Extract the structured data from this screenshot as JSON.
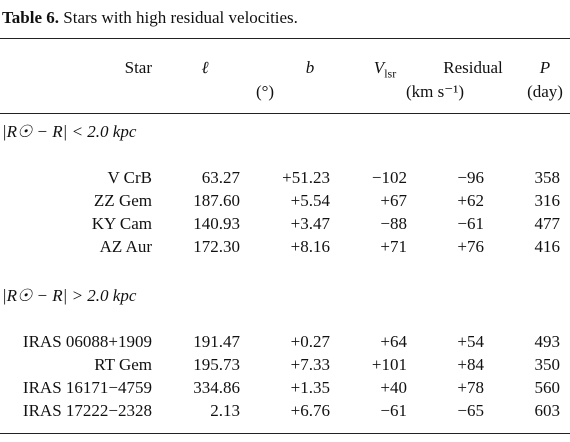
{
  "caption": {
    "label": "Table 6.",
    "text": "Stars with high residual velocities."
  },
  "table": {
    "header": [
      {
        "text": "Star"
      },
      {
        "text": "ℓ"
      },
      {
        "text": "b"
      },
      {
        "text": "V",
        "sub": "lsr"
      },
      {
        "text": "Residual"
      },
      {
        "text": "P"
      }
    ],
    "units": [
      "(°)",
      "(km s⁻¹)",
      "(day)"
    ],
    "sections": [
      {
        "label": "|R☉ − R| < 2.0 kpc",
        "rows": [
          [
            "V CrB",
            "63.27",
            "+51.23",
            "−102",
            "−96",
            "358"
          ],
          [
            "ZZ Gem",
            "187.60",
            "+5.54",
            "+67",
            "+62",
            "316"
          ],
          [
            "KY Cam",
            "140.93",
            "+3.47",
            "−88",
            "−61",
            "477"
          ],
          [
            "AZ Aur",
            "172.30",
            "+8.16",
            "+71",
            "+76",
            "416"
          ]
        ]
      },
      {
        "label": "|R☉ − R| > 2.0 kpc",
        "rows": [
          [
            "IRAS 06088+1909",
            "191.47",
            "+0.27",
            "+64",
            "+54",
            "493"
          ],
          [
            "RT Gem",
            "195.73",
            "+7.33",
            "+101",
            "+84",
            "350"
          ],
          [
            "IRAS 16171−4759",
            "334.86",
            "+1.35",
            "+40",
            "+78",
            "560"
          ],
          [
            "IRAS 17222−2328",
            "2.13",
            "+6.76",
            "−61",
            "−65",
            "603"
          ]
        ]
      }
    ]
  }
}
